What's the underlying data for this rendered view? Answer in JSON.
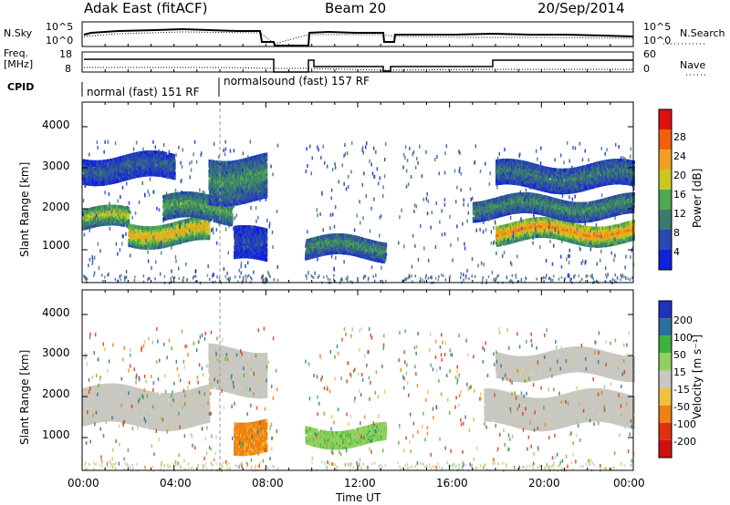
{
  "header": {
    "title": "Adak East (fitACF)",
    "beam": "Beam 20",
    "date": "20/Sep/2014"
  },
  "noise_panel": {
    "left_label": "N.Sky",
    "right_label": "N.Search",
    "left_ticks": [
      "10^5",
      "10^0"
    ],
    "right_ticks": [
      "10^5",
      "10^0"
    ]
  },
  "freq_panel": {
    "left_label_1": "Freq.",
    "left_label_2": "[MHz]",
    "right_label": "Nave",
    "left_ticks": [
      "18",
      "8"
    ],
    "right_ticks": [
      "60",
      "0"
    ]
  },
  "cpid": {
    "label": "CPID",
    "mode_1": "normal (fast) 151 RF",
    "mode_2": "normalsound (fast) 157 RF"
  },
  "time_axis": {
    "label": "Time UT",
    "ticks": [
      "00:00",
      "04:00",
      "08:00",
      "12:00",
      "16:00",
      "20:00",
      "00:00"
    ]
  },
  "range_axis": {
    "label": "Slant Range [km]",
    "ticks": [
      "1000",
      "2000",
      "3000",
      "4000"
    ]
  },
  "power_scale": {
    "label": "Power [dB]",
    "ticks": [
      "4",
      "8",
      "12",
      "16",
      "20",
      "24",
      "28"
    ],
    "colors": [
      "#1020e0",
      "#2a48b0",
      "#3a7a70",
      "#50a850",
      "#c8c820",
      "#f0a020",
      "#f06010",
      "#e01010"
    ]
  },
  "velocity_scale": {
    "label": "Velocity [m s⁻¹]",
    "ticks": [
      "200",
      "100",
      "50",
      "15",
      "-15",
      "-50",
      "-100",
      "-200"
    ],
    "colors": [
      "#2030c0",
      "#2a70a0",
      "#40b040",
      "#90d060",
      "#c8c8c0",
      "#f0c040",
      "#f08010",
      "#e03010",
      "#d01010"
    ]
  },
  "chart_data": [
    {
      "type": "heatmap",
      "panel": "power",
      "x_range_hours": [
        0,
        24
      ],
      "y_range_km": [
        200,
        4600
      ],
      "data_gaps_hours": [
        [
          8.5,
          9.7
        ],
        [
          13.2,
          13.7
        ]
      ],
      "echo_bands": [
        {
          "t0": 0.0,
          "t1": 2.0,
          "r0": 1500,
          "r1": 2000,
          "power": 18
        },
        {
          "t0": 2.0,
          "t1": 5.5,
          "r0": 1150,
          "r1": 1700,
          "power": 22
        },
        {
          "t0": 3.5,
          "t1": 6.5,
          "r0": 1700,
          "r1": 2300,
          "power": 14
        },
        {
          "t0": 5.5,
          "t1": 8.0,
          "r0": 2200,
          "r1": 3300,
          "power": 12
        },
        {
          "t0": 0.0,
          "t1": 4.0,
          "r0": 2700,
          "r1": 3300,
          "power": 8
        },
        {
          "t0": 6.6,
          "t1": 8.0,
          "r0": 700,
          "r1": 1500,
          "power": 6
        },
        {
          "t0": 9.7,
          "t1": 13.2,
          "r0": 800,
          "r1": 1300,
          "power": 12
        },
        {
          "t0": 18.0,
          "t1": 24.0,
          "r0": 1200,
          "r1": 1700,
          "power": 24
        },
        {
          "t0": 17.0,
          "t1": 24.0,
          "r0": 1800,
          "r1": 2300,
          "power": 12
        },
        {
          "t0": 18.0,
          "t1": 24.0,
          "r0": 2500,
          "r1": 3100,
          "power": 10
        }
      ]
    },
    {
      "type": "heatmap",
      "panel": "velocity",
      "x_range_hours": [
        0,
        24
      ],
      "y_range_km": [
        200,
        4600
      ],
      "data_gaps_hours": [
        [
          8.5,
          9.7
        ],
        [
          13.2,
          13.7
        ]
      ],
      "echo_bands": [
        {
          "t0": 0.0,
          "t1": 5.5,
          "r0": 1300,
          "r1": 2200,
          "velocity": 0
        },
        {
          "t0": 5.5,
          "t1": 8.0,
          "r0": 2100,
          "r1": 3200,
          "velocity": 0
        },
        {
          "t0": 6.6,
          "t1": 8.0,
          "r0": 700,
          "r1": 1500,
          "velocity": -60
        },
        {
          "t0": 9.7,
          "t1": 13.2,
          "r0": 850,
          "r1": 1250,
          "velocity": 40
        },
        {
          "t0": 17.5,
          "t1": 24.0,
          "r0": 1300,
          "r1": 2100,
          "velocity": 0
        },
        {
          "t0": 18.0,
          "t1": 24.0,
          "r0": 2500,
          "r1": 3100,
          "velocity": 0
        }
      ]
    }
  ]
}
